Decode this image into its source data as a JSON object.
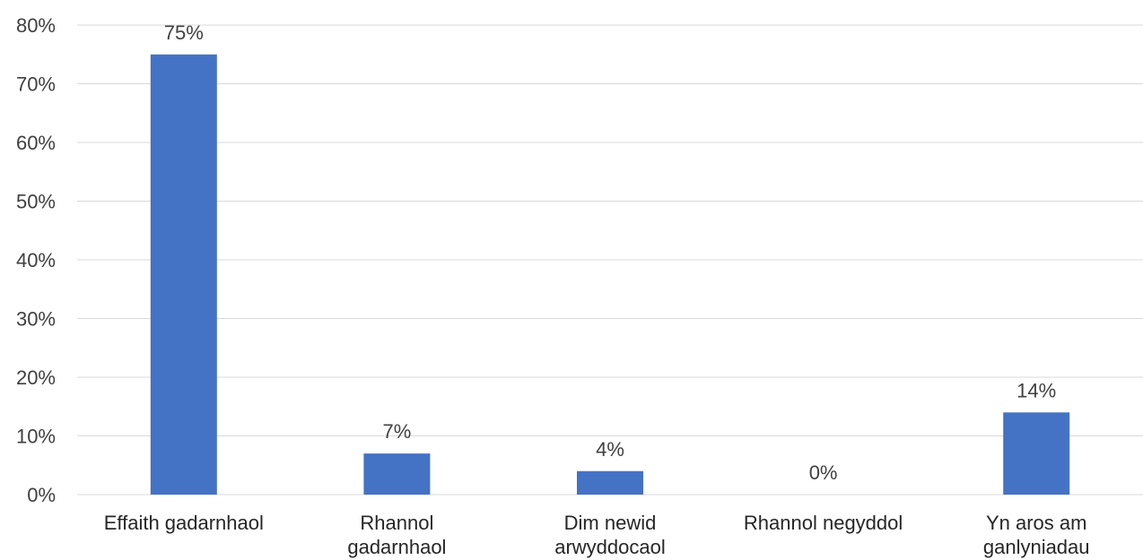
{
  "chart_data": {
    "type": "bar",
    "title": "",
    "xlabel": "",
    "ylabel": "",
    "categories": [
      [
        "Effaith gadarnhaol"
      ],
      [
        "Rhannol",
        "gadarnhaol"
      ],
      [
        "Dim newid",
        "arwyddocaol"
      ],
      [
        "Rhannol negyddol"
      ],
      [
        "Yn aros am",
        "ganlyniadau"
      ]
    ],
    "values": [
      75,
      7,
      4,
      0,
      14
    ],
    "value_labels": [
      "75%",
      "7%",
      "4%",
      "0%",
      "14%"
    ],
    "ylim": [
      0,
      80
    ],
    "yticks": [
      0,
      10,
      20,
      30,
      40,
      50,
      60,
      70,
      80
    ],
    "ytick_labels": [
      "0%",
      "10%",
      "20%",
      "30%",
      "40%",
      "50%",
      "60%",
      "70%",
      "80%"
    ],
    "grid": true,
    "legend": "none",
    "colors": {
      "bar": "#4472C4",
      "grid": "#D9D9D9",
      "axis": "#D9D9D9"
    }
  }
}
